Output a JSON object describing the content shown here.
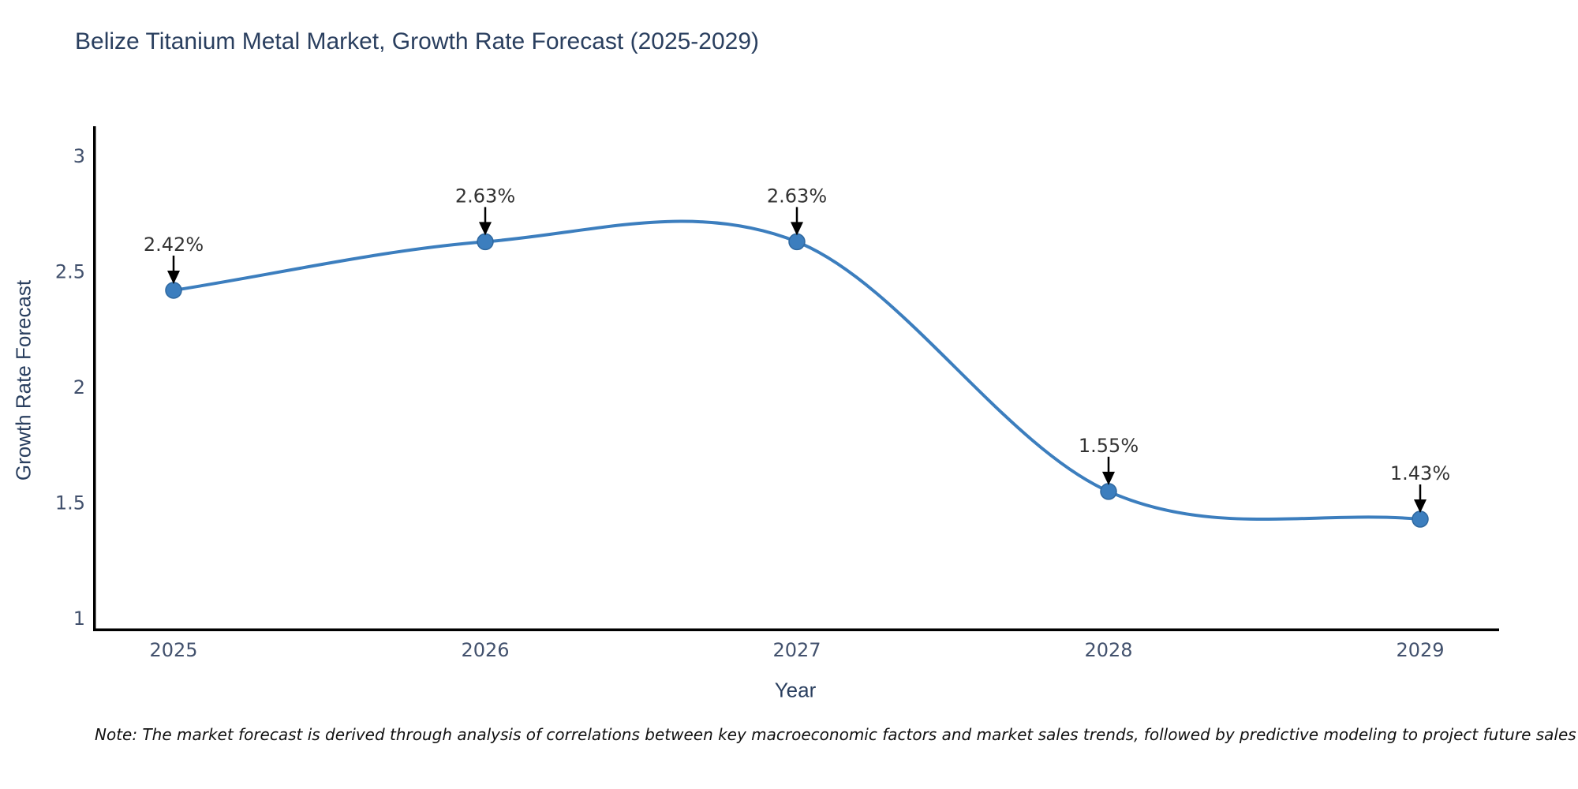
{
  "title": "Belize Titanium Metal Market, Growth Rate Forecast (2025-2029)",
  "note": "Note: The market forecast is derived through analysis of correlations between key macroeconomic factors and market sales trends, followed by predictive modeling to project future sales",
  "chart_data": {
    "type": "line",
    "line_shape": "spline",
    "title": "Belize Titanium Metal Market, Growth Rate Forecast (2025-2029)",
    "xlabel": "Year",
    "ylabel": "Growth Rate Forecast",
    "x": [
      2025,
      2026,
      2027,
      2028,
      2029
    ],
    "series": [
      {
        "name": "Growth Rate Forecast",
        "values": [
          2.42,
          2.63,
          2.63,
          1.55,
          1.43
        ]
      }
    ],
    "point_labels": [
      "2.42%",
      "2.63%",
      "2.63%",
      "1.55%",
      "1.43%"
    ],
    "xticks": [
      "2025",
      "2026",
      "2027",
      "2028",
      "2029"
    ],
    "yticks": [
      "1",
      "1.5",
      "2",
      "2.5",
      "3"
    ],
    "ylim": [
      1,
      3
    ],
    "grid": false,
    "legend_position": "none",
    "markers": true,
    "annotation_arrows": true,
    "colors": {
      "line": "#3c7ebe",
      "marker": "#3c7ebe",
      "marker_edge": "#2f689f",
      "axis_line": "#000000",
      "tick_text": "#42516d",
      "annotation_text": "#333333",
      "annotation_arrow": "#000000",
      "title_text": "#2a3f5f",
      "background": "#ffffff"
    }
  }
}
